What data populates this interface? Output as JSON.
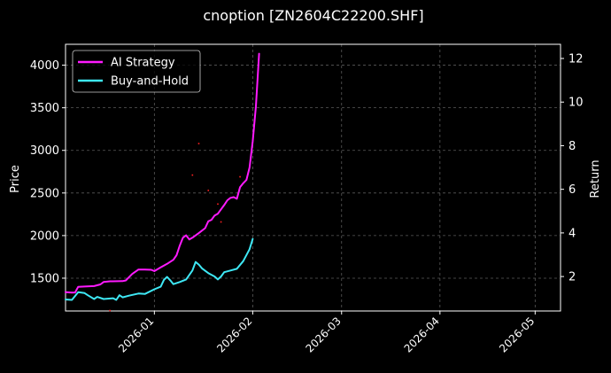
{
  "chart_data": {
    "type": "line",
    "title": "cnoption [ZN2604C22200.SHF]",
    "xlabel": "",
    "ylabel": "Price",
    "ylabel_right": "Return",
    "x_axis": {
      "type": "date",
      "range": [
        "2025-12-04",
        "2026-05-09"
      ],
      "ticks": [
        "2026-01-01",
        "2026-02-01",
        "2026-03-01",
        "2026-04-01",
        "2026-05-01"
      ],
      "tick_labels": [
        "2026-01",
        "2026-02",
        "2026-03",
        "2026-04",
        "2026-05"
      ]
    },
    "y_left": {
      "range": [
        1115,
        4245
      ],
      "ticks": [
        1500,
        2000,
        2500,
        3000,
        3500,
        4000
      ],
      "tick_labels": [
        "1500",
        "2000",
        "2500",
        "3000",
        "3500",
        "4000"
      ]
    },
    "y_right": {
      "range": [
        0.42,
        12.65
      ],
      "ticks": [
        2,
        4,
        6,
        8,
        10,
        12
      ],
      "tick_labels": [
        "2",
        "4",
        "6",
        "8",
        "10",
        "12"
      ]
    },
    "grid": true,
    "grid_style": "dashed",
    "legend": {
      "placement": "top-left"
    },
    "background": "#000000",
    "foreground": "#ffffff",
    "series": [
      {
        "name": "AI Strategy",
        "axis": "right",
        "color": "#ff1aff",
        "points": [
          [
            "2025-12-04",
            1.28
          ],
          [
            "2025-12-06",
            1.26
          ],
          [
            "2025-12-07",
            1.27
          ],
          [
            "2025-12-08",
            1.53
          ],
          [
            "2025-12-10",
            1.54
          ],
          [
            "2025-12-13",
            1.56
          ],
          [
            "2025-12-15",
            1.64
          ],
          [
            "2025-12-16",
            1.75
          ],
          [
            "2025-12-18",
            1.78
          ],
          [
            "2025-12-22",
            1.79
          ],
          [
            "2025-12-23",
            1.82
          ],
          [
            "2025-12-25",
            2.12
          ],
          [
            "2025-12-27",
            2.32
          ],
          [
            "2025-12-29",
            2.32
          ],
          [
            "2025-12-31",
            2.31
          ],
          [
            "2026-01-01",
            2.25
          ],
          [
            "2026-01-03",
            2.42
          ],
          [
            "2026-01-05",
            2.58
          ],
          [
            "2026-01-07",
            2.77
          ],
          [
            "2026-01-08",
            2.98
          ],
          [
            "2026-01-09",
            3.42
          ],
          [
            "2026-01-10",
            3.78
          ],
          [
            "2026-01-11",
            3.89
          ],
          [
            "2026-01-12",
            3.7
          ],
          [
            "2026-01-13",
            3.78
          ],
          [
            "2026-01-15",
            3.99
          ],
          [
            "2026-01-17",
            4.22
          ],
          [
            "2026-01-18",
            4.53
          ],
          [
            "2026-01-19",
            4.6
          ],
          [
            "2026-01-20",
            4.8
          ],
          [
            "2026-01-21",
            4.88
          ],
          [
            "2026-01-23",
            5.28
          ],
          [
            "2026-01-24",
            5.5
          ],
          [
            "2026-01-25",
            5.61
          ],
          [
            "2026-01-26",
            5.64
          ],
          [
            "2026-01-27",
            5.57
          ],
          [
            "2026-01-28",
            6.1
          ],
          [
            "2026-01-29",
            6.28
          ],
          [
            "2026-01-30",
            6.43
          ],
          [
            "2026-01-31",
            7.0
          ],
          [
            "2026-02-01",
            8.2
          ],
          [
            "2026-02-02",
            9.8
          ],
          [
            "2026-02-03",
            12.22
          ]
        ]
      },
      {
        "name": "Buy-and-Hold",
        "axis": "left",
        "color": "#3ee8f5",
        "points": [
          [
            "2025-12-04",
            1250
          ],
          [
            "2025-12-06",
            1245
          ],
          [
            "2025-12-08",
            1335
          ],
          [
            "2025-12-10",
            1325
          ],
          [
            "2025-12-11",
            1300
          ],
          [
            "2025-12-13",
            1255
          ],
          [
            "2025-12-14",
            1280
          ],
          [
            "2025-12-16",
            1255
          ],
          [
            "2025-12-19",
            1265
          ],
          [
            "2025-12-20",
            1245
          ],
          [
            "2025-12-21",
            1300
          ],
          [
            "2025-12-22",
            1275
          ],
          [
            "2025-12-24",
            1295
          ],
          [
            "2025-12-27",
            1320
          ],
          [
            "2025-12-29",
            1315
          ],
          [
            "2026-01-01",
            1370
          ],
          [
            "2026-01-03",
            1400
          ],
          [
            "2026-01-04",
            1480
          ],
          [
            "2026-01-05",
            1515
          ],
          [
            "2026-01-06",
            1475
          ],
          [
            "2026-01-07",
            1430
          ],
          [
            "2026-01-09",
            1455
          ],
          [
            "2026-01-11",
            1485
          ],
          [
            "2026-01-13",
            1590
          ],
          [
            "2026-01-14",
            1690
          ],
          [
            "2026-01-15",
            1660
          ],
          [
            "2026-01-16",
            1615
          ],
          [
            "2026-01-18",
            1560
          ],
          [
            "2026-01-20",
            1520
          ],
          [
            "2026-01-21",
            1485
          ],
          [
            "2026-01-22",
            1520
          ],
          [
            "2026-01-23",
            1570
          ],
          [
            "2026-01-25",
            1590
          ],
          [
            "2026-01-27",
            1610
          ],
          [
            "2026-01-29",
            1700
          ],
          [
            "2026-01-31",
            1840
          ],
          [
            "2026-02-01",
            1960
          ]
        ]
      }
    ],
    "markers": {
      "color": "#ff2020",
      "points": [
        [
          "2026-01-15",
          3080
        ],
        [
          "2026-01-13",
          2710
        ],
        [
          "2026-01-18",
          2530
        ],
        [
          "2026-01-21",
          2370
        ],
        [
          "2026-01-22",
          2160
        ],
        [
          "2026-01-28",
          2690
        ],
        [
          "2025-12-18",
          1120
        ]
      ]
    }
  }
}
